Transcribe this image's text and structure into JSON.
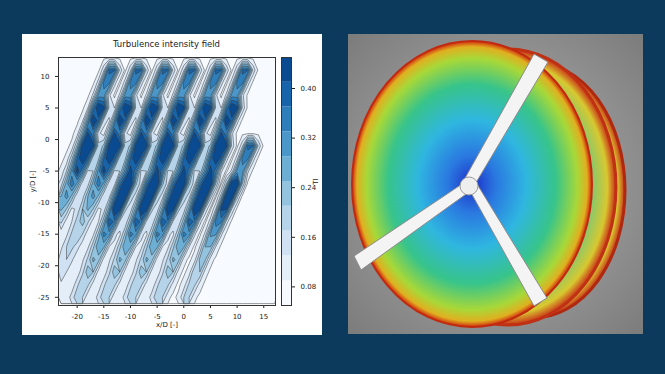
{
  "chart_data": {
    "type": "contour",
    "title": "Turbulence intensity field",
    "xlabel": "x/D [-]",
    "ylabel": "y/D [-]",
    "color": "Blues",
    "xlim": [
      -23.5,
      17.2
    ],
    "ylim": [
      -26.3,
      13
    ],
    "xticks": [
      -20,
      -15,
      -10,
      -5,
      0,
      5,
      10,
      15
    ],
    "yticks": [
      -25,
      -20,
      -15,
      -10,
      -5,
      0,
      5,
      10
    ],
    "colorbar": {
      "label": "TI",
      "range": [
        0.05,
        0.45
      ],
      "ticks": [
        0.08,
        0.16,
        0.24,
        0.32,
        {
          "value": 0.4,
          "label": "0.40"
        }
      ]
    },
    "x": [
      -23,
      -22,
      -21,
      -20,
      -19,
      -18,
      -17,
      -16,
      -15,
      -14,
      -13,
      -12,
      -11,
      -10,
      -9,
      -8,
      -7,
      -6,
      -5,
      -4,
      -3,
      -2,
      -1,
      0,
      1,
      2,
      3,
      4,
      5,
      6,
      7,
      8,
      9,
      10,
      11,
      12,
      13,
      14,
      15,
      16,
      17
    ],
    "y": [
      13,
      11,
      9,
      7,
      5,
      3,
      1,
      -1,
      -3,
      -5,
      -7,
      -9,
      -11,
      -13,
      -15,
      -17,
      -19,
      -21,
      -23,
      -25
    ],
    "values": [
      [
        0.08,
        0.08,
        0.08,
        0.08,
        0.08,
        0.08,
        0.08,
        0.08,
        0.08,
        0.08,
        0.08,
        0.08,
        0.08,
        0.08,
        0.08,
        0.08,
        0.08,
        0.08,
        0.08,
        0.08,
        0.08,
        0.08,
        0.08,
        0.08,
        0.08,
        0.08,
        0.08,
        0.08,
        0.08,
        0.08,
        0.08,
        0.08,
        0.08,
        0.08,
        0.08,
        0.08,
        0.08,
        0.08,
        0.08,
        0.08,
        0.08
      ],
      [
        0.08,
        0.08,
        0.08,
        0.08,
        0.08,
        0.08,
        0.08,
        0.08,
        0.16,
        0.38,
        0.38,
        0.16,
        0.08,
        0.16,
        0.38,
        0.38,
        0.16,
        0.08,
        0.16,
        0.38,
        0.38,
        0.16,
        0.08,
        0.16,
        0.38,
        0.38,
        0.16,
        0.08,
        0.16,
        0.38,
        0.38,
        0.16,
        0.08,
        0.16,
        0.38,
        0.38,
        0.16,
        0.08,
        0.08,
        0.08,
        0.08
      ],
      [
        0.08,
        0.08,
        0.08,
        0.08,
        0.08,
        0.08,
        0.08,
        0.15,
        0.35,
        0.35,
        0.15,
        0.08,
        0.15,
        0.35,
        0.35,
        0.15,
        0.08,
        0.15,
        0.35,
        0.35,
        0.15,
        0.08,
        0.15,
        0.35,
        0.35,
        0.15,
        0.08,
        0.15,
        0.35,
        0.35,
        0.15,
        0.08,
        0.15,
        0.35,
        0.35,
        0.15,
        0.08,
        0.08,
        0.08,
        0.08,
        0.08
      ],
      [
        0.08,
        0.08,
        0.08,
        0.08,
        0.08,
        0.08,
        0.14,
        0.31,
        0.31,
        0.14,
        0.08,
        0.14,
        0.31,
        0.31,
        0.14,
        0.08,
        0.14,
        0.31,
        0.31,
        0.14,
        0.08,
        0.14,
        0.31,
        0.31,
        0.14,
        0.08,
        0.14,
        0.31,
        0.31,
        0.14,
        0.08,
        0.14,
        0.31,
        0.31,
        0.14,
        0.08,
        0.08,
        0.08,
        0.08,
        0.08,
        0.08
      ],
      [
        0.08,
        0.08,
        0.08,
        0.08,
        0.08,
        0.13,
        0.34,
        0.47,
        0.43,
        0.16,
        0.13,
        0.34,
        0.47,
        0.43,
        0.16,
        0.13,
        0.34,
        0.47,
        0.43,
        0.16,
        0.13,
        0.34,
        0.47,
        0.43,
        0.16,
        0.13,
        0.34,
        0.47,
        0.43,
        0.16,
        0.13,
        0.34,
        0.47,
        0.43,
        0.16,
        0.08,
        0.08,
        0.08,
        0.08,
        0.08,
        0.08
      ],
      [
        0.08,
        0.08,
        0.08,
        0.08,
        0.12,
        0.29,
        0.47,
        0.39,
        0.15,
        0.12,
        0.29,
        0.47,
        0.39,
        0.15,
        0.12,
        0.29,
        0.47,
        0.39,
        0.15,
        0.12,
        0.29,
        0.47,
        0.39,
        0.15,
        0.12,
        0.29,
        0.47,
        0.39,
        0.15,
        0.12,
        0.29,
        0.47,
        0.39,
        0.15,
        0.08,
        0.08,
        0.08,
        0.08,
        0.08,
        0.08,
        0.08
      ],
      [
        0.08,
        0.08,
        0.08,
        0.11,
        0.25,
        0.42,
        0.34,
        0.14,
        0.11,
        0.25,
        0.42,
        0.34,
        0.14,
        0.11,
        0.25,
        0.42,
        0.34,
        0.14,
        0.11,
        0.25,
        0.42,
        0.34,
        0.14,
        0.11,
        0.25,
        0.42,
        0.34,
        0.14,
        0.11,
        0.25,
        0.42,
        0.34,
        0.14,
        0.08,
        0.08,
        0.08,
        0.08,
        0.08,
        0.08,
        0.08,
        0.08
      ],
      [
        0.08,
        0.08,
        0.1,
        0.22,
        0.43,
        0.47,
        0.43,
        0.18,
        0.22,
        0.43,
        0.47,
        0.43,
        0.18,
        0.22,
        0.43,
        0.47,
        0.43,
        0.18,
        0.22,
        0.43,
        0.47,
        0.43,
        0.18,
        0.22,
        0.43,
        0.47,
        0.43,
        0.18,
        0.22,
        0.43,
        0.47,
        0.43,
        0.16,
        0.08,
        0.16,
        0.38,
        0.38,
        0.16,
        0.08,
        0.08,
        0.08
      ],
      [
        0.08,
        0.1,
        0.2,
        0.37,
        0.47,
        0.39,
        0.17,
        0.2,
        0.37,
        0.47,
        0.39,
        0.17,
        0.2,
        0.37,
        0.47,
        0.39,
        0.17,
        0.2,
        0.37,
        0.47,
        0.39,
        0.17,
        0.2,
        0.37,
        0.47,
        0.39,
        0.17,
        0.2,
        0.37,
        0.47,
        0.39,
        0.15,
        0.08,
        0.15,
        0.35,
        0.35,
        0.15,
        0.08,
        0.08,
        0.08,
        0.08
      ],
      [
        0.1,
        0.17,
        0.31,
        0.44,
        0.34,
        0.16,
        0.17,
        0.31,
        0.44,
        0.34,
        0.16,
        0.17,
        0.31,
        0.44,
        0.34,
        0.16,
        0.17,
        0.31,
        0.44,
        0.34,
        0.16,
        0.17,
        0.31,
        0.44,
        0.34,
        0.16,
        0.17,
        0.31,
        0.44,
        0.34,
        0.14,
        0.08,
        0.14,
        0.31,
        0.31,
        0.14,
        0.08,
        0.08,
        0.08,
        0.08,
        0.08
      ],
      [
        0.15,
        0.27,
        0.36,
        0.28,
        0.14,
        0.15,
        0.27,
        0.36,
        0.28,
        0.14,
        0.15,
        0.35,
        0.47,
        0.47,
        0.22,
        0.15,
        0.35,
        0.47,
        0.47,
        0.22,
        0.15,
        0.35,
        0.47,
        0.47,
        0.22,
        0.15,
        0.35,
        0.47,
        0.47,
        0.21,
        0.08,
        0.21,
        0.47,
        0.47,
        0.21,
        0.08,
        0.08,
        0.08,
        0.08,
        0.08,
        0.08
      ],
      [
        0.25,
        0.31,
        0.24,
        0.13,
        0.15,
        0.25,
        0.31,
        0.24,
        0.13,
        0.15,
        0.32,
        0.47,
        0.47,
        0.2,
        0.15,
        0.32,
        0.47,
        0.47,
        0.2,
        0.15,
        0.32,
        0.47,
        0.47,
        0.2,
        0.15,
        0.32,
        0.47,
        0.47,
        0.19,
        0.08,
        0.19,
        0.47,
        0.47,
        0.19,
        0.08,
        0.08,
        0.08,
        0.08,
        0.08,
        0.08,
        0.08
      ],
      [
        0.26,
        0.21,
        0.12,
        0.14,
        0.21,
        0.26,
        0.21,
        0.12,
        0.14,
        0.27,
        0.47,
        0.44,
        0.18,
        0.14,
        0.27,
        0.47,
        0.44,
        0.18,
        0.14,
        0.27,
        0.47,
        0.44,
        0.18,
        0.14,
        0.27,
        0.47,
        0.44,
        0.17,
        0.08,
        0.17,
        0.42,
        0.42,
        0.17,
        0.08,
        0.08,
        0.08,
        0.08,
        0.08,
        0.08,
        0.08,
        0.08
      ],
      [
        0.18,
        0.11,
        0.13,
        0.19,
        0.23,
        0.18,
        0.11,
        0.13,
        0.24,
        0.41,
        0.36,
        0.16,
        0.13,
        0.24,
        0.41,
        0.36,
        0.16,
        0.13,
        0.24,
        0.41,
        0.36,
        0.16,
        0.13,
        0.24,
        0.41,
        0.36,
        0.15,
        0.08,
        0.15,
        0.35,
        0.35,
        0.15,
        0.08,
        0.08,
        0.08,
        0.08,
        0.08,
        0.08,
        0.08,
        0.08,
        0.08
      ],
      [
        0.1,
        0.12,
        0.18,
        0.21,
        0.17,
        0.1,
        0.12,
        0.22,
        0.35,
        0.31,
        0.14,
        0.12,
        0.22,
        0.35,
        0.31,
        0.14,
        0.12,
        0.22,
        0.35,
        0.31,
        0.14,
        0.12,
        0.22,
        0.35,
        0.31,
        0.14,
        0.08,
        0.14,
        0.3,
        0.3,
        0.14,
        0.08,
        0.08,
        0.08,
        0.08,
        0.08,
        0.08,
        0.08,
        0.08,
        0.08,
        0.08
      ],
      [
        0.12,
        0.17,
        0.18,
        0.15,
        0.1,
        0.12,
        0.2,
        0.29,
        0.26,
        0.13,
        0.12,
        0.2,
        0.29,
        0.26,
        0.13,
        0.12,
        0.2,
        0.29,
        0.26,
        0.13,
        0.12,
        0.2,
        0.29,
        0.26,
        0.13,
        0.08,
        0.13,
        0.25,
        0.25,
        0.13,
        0.08,
        0.08,
        0.08,
        0.08,
        0.08,
        0.08,
        0.08,
        0.08,
        0.08,
        0.08,
        0.08
      ],
      [
        0.16,
        0.17,
        0.14,
        0.09,
        0.12,
        0.18,
        0.26,
        0.23,
        0.11,
        0.12,
        0.18,
        0.26,
        0.23,
        0.11,
        0.12,
        0.18,
        0.26,
        0.23,
        0.11,
        0.12,
        0.18,
        0.26,
        0.23,
        0.11,
        0.08,
        0.11,
        0.22,
        0.22,
        0.11,
        0.08,
        0.08,
        0.08,
        0.08,
        0.08,
        0.08,
        0.08,
        0.08,
        0.08,
        0.08,
        0.08,
        0.08
      ],
      [
        0.16,
        0.13,
        0.09,
        0.1,
        0.16,
        0.24,
        0.21,
        0.11,
        0.1,
        0.16,
        0.24,
        0.21,
        0.11,
        0.1,
        0.16,
        0.24,
        0.21,
        0.11,
        0.1,
        0.16,
        0.24,
        0.21,
        0.11,
        0.08,
        0.11,
        0.21,
        0.21,
        0.11,
        0.08,
        0.08,
        0.08,
        0.08,
        0.08,
        0.08,
        0.08,
        0.08,
        0.08,
        0.08,
        0.08,
        0.08,
        0.08
      ],
      [
        0.12,
        0.09,
        0.1,
        0.16,
        0.21,
        0.18,
        0.11,
        0.1,
        0.16,
        0.21,
        0.18,
        0.11,
        0.1,
        0.16,
        0.21,
        0.18,
        0.11,
        0.1,
        0.16,
        0.21,
        0.18,
        0.11,
        0.08,
        0.11,
        0.18,
        0.18,
        0.11,
        0.08,
        0.08,
        0.08,
        0.08,
        0.08,
        0.08,
        0.08,
        0.08,
        0.08,
        0.08,
        0.08,
        0.08,
        0.08,
        0.08
      ],
      [
        0.09,
        0.1,
        0.15,
        0.2,
        0.17,
        0.1,
        0.1,
        0.15,
        0.2,
        0.17,
        0.1,
        0.1,
        0.15,
        0.2,
        0.17,
        0.1,
        0.1,
        0.15,
        0.2,
        0.17,
        0.1,
        0.08,
        0.1,
        0.17,
        0.17,
        0.1,
        0.08,
        0.08,
        0.08,
        0.08,
        0.08,
        0.08,
        0.08,
        0.08,
        0.08,
        0.08,
        0.08,
        0.08,
        0.08,
        0.08,
        0.08
      ]
    ]
  }
}
